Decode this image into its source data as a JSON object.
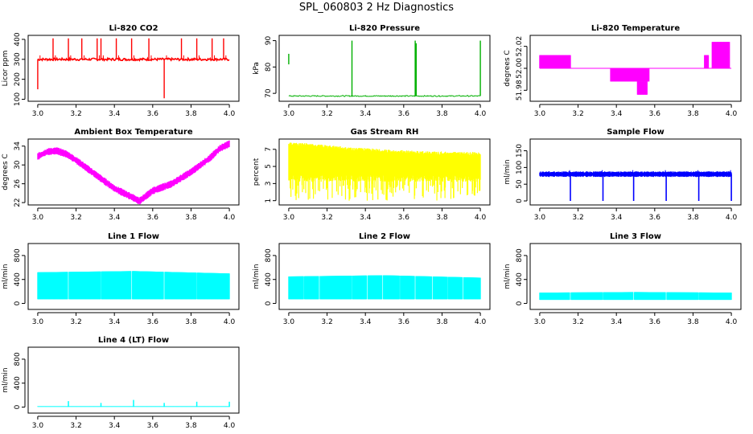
{
  "page_title": "SPL_060803  2 Hz Diagnostics",
  "chart_data": [
    {
      "id": "co2",
      "type": "line",
      "title": "Li-820 CO2",
      "ylabel": "Licor ppm",
      "color": "#ff0000",
      "xlim": [
        2.95,
        4.05
      ],
      "ylim": [
        90,
        420
      ],
      "xticks": [
        "3.0",
        "3.2",
        "3.4",
        "3.6",
        "3.8",
        "4.0"
      ],
      "yticks": [
        "100",
        "200",
        "300",
        "400"
      ],
      "baseline": 300,
      "noise": 6,
      "spikes": [
        {
          "x": 3.0,
          "v": 150
        },
        {
          "x": 3.08,
          "v": 405
        },
        {
          "x": 3.16,
          "v": 405
        },
        {
          "x": 3.23,
          "v": 405
        },
        {
          "x": 3.31,
          "v": 405
        },
        {
          "x": 3.33,
          "v": 405
        },
        {
          "x": 3.41,
          "v": 405
        },
        {
          "x": 3.49,
          "v": 405
        },
        {
          "x": 3.58,
          "v": 405
        },
        {
          "x": 3.66,
          "v": 105
        },
        {
          "x": 3.75,
          "v": 405
        },
        {
          "x": 3.83,
          "v": 405
        },
        {
          "x": 3.91,
          "v": 405
        },
        {
          "x": 3.97,
          "v": 405
        }
      ]
    },
    {
      "id": "pressure",
      "type": "line",
      "title": "Li-820 Pressure",
      "ylabel": "kPa",
      "color": "#00b000",
      "xlim": [
        2.95,
        4.05
      ],
      "ylim": [
        67,
        92
      ],
      "xticks": [
        "3.0",
        "3.2",
        "3.4",
        "3.6",
        "3.8",
        "4.0"
      ],
      "yticks": [
        "70",
        "80",
        "90"
      ],
      "baseline": 69,
      "noise": 0.2,
      "spikes": [
        {
          "x": 3.0,
          "v": 85,
          "from": 81
        },
        {
          "x": 3.33,
          "v": 90
        },
        {
          "x": 3.66,
          "v": 90
        },
        {
          "x": 3.665,
          "v": 89
        },
        {
          "x": 4.0,
          "v": 90
        }
      ]
    },
    {
      "id": "licor-temp",
      "type": "step",
      "title": "Li-820 Temperature",
      "ylabel": "degrees C",
      "color": "#ff00ff",
      "xlim": [
        2.95,
        4.05
      ],
      "ylim": [
        51.97,
        52.03
      ],
      "xticks": [
        "3.0",
        "3.2",
        "3.4",
        "3.6",
        "3.8",
        "4.0"
      ],
      "yticks": [
        "51.98",
        "52.00",
        "52.02"
      ],
      "level": 52.0,
      "blocks": [
        {
          "x0": 3.0,
          "x1": 3.16,
          "lo": 52.0,
          "hi": 52.012
        },
        {
          "x0": 3.37,
          "x1": 3.57,
          "lo": 51.988,
          "hi": 52.0
        },
        {
          "x0": 3.51,
          "x1": 3.56,
          "lo": 51.976,
          "hi": 51.988
        },
        {
          "x0": 3.86,
          "x1": 3.88,
          "lo": 52.0,
          "hi": 52.012
        },
        {
          "x0": 3.9,
          "x1": 3.99,
          "lo": 52.0,
          "hi": 52.024
        }
      ]
    },
    {
      "id": "ambient-temp",
      "type": "band",
      "title": "Ambient Box Temperature",
      "ylabel": "degrees C",
      "color": "#ff00ff",
      "xlim": [
        2.95,
        4.05
      ],
      "ylim": [
        21.5,
        35.5
      ],
      "xticks": [
        "3.0",
        "3.2",
        "3.4",
        "3.6",
        "3.8",
        "4.0"
      ],
      "yticks": [
        "22",
        "26",
        "30",
        "34"
      ],
      "profile": [
        [
          3.0,
          31.8
        ],
        [
          3.05,
          32.8
        ],
        [
          3.1,
          33.0
        ],
        [
          3.15,
          32.3
        ],
        [
          3.2,
          31.0
        ],
        [
          3.3,
          28.0
        ],
        [
          3.4,
          25.0
        ],
        [
          3.5,
          23.0
        ],
        [
          3.53,
          22.3
        ],
        [
          3.6,
          24.5
        ],
        [
          3.7,
          26.0
        ],
        [
          3.8,
          28.5
        ],
        [
          3.9,
          31.5
        ],
        [
          3.95,
          33.5
        ],
        [
          4.0,
          34.5
        ]
      ],
      "halfwidth": 0.6
    },
    {
      "id": "rh",
      "type": "band",
      "title": "Gas Stream RH",
      "ylabel": "percent",
      "color": "#ffff00",
      "xlim": [
        2.95,
        4.05
      ],
      "ylim": [
        0.5,
        8.2
      ],
      "xticks": [
        "3.0",
        "3.2",
        "3.4",
        "3.6",
        "3.8",
        "4.0"
      ],
      "yticks": [
        "1",
        "3",
        "5",
        "7"
      ],
      "top": [
        [
          3.0,
          7.8
        ],
        [
          3.1,
          7.7
        ],
        [
          3.3,
          7.3
        ],
        [
          3.5,
          7.0
        ],
        [
          3.7,
          6.8
        ],
        [
          3.9,
          6.7
        ],
        [
          4.0,
          6.7
        ]
      ],
      "bottom": 4.0,
      "min_bottom": 1.0
    },
    {
      "id": "sample-flow",
      "type": "band",
      "title": "Sample Flow",
      "ylabel": "ml/min",
      "color": "#0000ff",
      "xlim": [
        2.95,
        4.05
      ],
      "ylim": [
        -12,
        185
      ],
      "xticks": [
        "3.0",
        "3.2",
        "3.4",
        "3.6",
        "3.8",
        "4.0"
      ],
      "yticks": [
        "0",
        "50",
        "100",
        "150"
      ],
      "center": 80,
      "halfwidth": 7,
      "dips": [
        3.16,
        3.33,
        3.49,
        3.66,
        3.83,
        4.0
      ]
    },
    {
      "id": "line1",
      "type": "band",
      "title": "Line 1 Flow",
      "ylabel": "ml/min",
      "color": "#00ffff",
      "xlim": [
        2.95,
        4.05
      ],
      "ylim": [
        -100,
        1000
      ],
      "xticks": [
        "3.0",
        "3.2",
        "3.4",
        "3.6",
        "3.8",
        "4.0"
      ],
      "yticks": [
        "0",
        "400",
        "800"
      ],
      "lo": 70,
      "hi_profile": [
        [
          3.0,
          520
        ],
        [
          3.5,
          540
        ],
        [
          4.0,
          500
        ]
      ],
      "gaps": [
        3.16,
        3.33,
        3.49,
        3.66,
        3.83
      ]
    },
    {
      "id": "line2",
      "type": "band",
      "title": "Line 2 Flow",
      "ylabel": "ml/min",
      "color": "#00ffff",
      "xlim": [
        2.95,
        4.05
      ],
      "ylim": [
        -100,
        1000
      ],
      "xticks": [
        "3.0",
        "3.2",
        "3.4",
        "3.6",
        "3.8",
        "4.0"
      ],
      "yticks": [
        "0",
        "400",
        "800"
      ],
      "lo": 70,
      "hi_profile": [
        [
          3.0,
          450
        ],
        [
          3.5,
          470
        ],
        [
          4.0,
          430
        ]
      ],
      "gaps": [
        3.08,
        3.16,
        3.33,
        3.41,
        3.49,
        3.58,
        3.66,
        3.75,
        3.83,
        3.91
      ]
    },
    {
      "id": "line3",
      "type": "band",
      "title": "Line 3 Flow",
      "ylabel": "ml/min",
      "color": "#00ffff",
      "xlim": [
        2.95,
        4.05
      ],
      "ylim": [
        -100,
        1000
      ],
      "xticks": [
        "3.0",
        "3.2",
        "3.4",
        "3.6",
        "3.8",
        "4.0"
      ],
      "yticks": [
        "0",
        "400",
        "800"
      ],
      "lo": 60,
      "hi_profile": [
        [
          3.0,
          180
        ],
        [
          3.5,
          190
        ],
        [
          4.0,
          180
        ]
      ],
      "gaps": [
        3.16,
        3.33,
        3.49,
        3.66,
        3.83
      ]
    },
    {
      "id": "line4",
      "type": "band",
      "title": "Line 4 (LT) Flow",
      "ylabel": "ml/min",
      "color": "#00ffff",
      "xlim": [
        2.95,
        4.05
      ],
      "ylim": [
        -100,
        1000
      ],
      "xticks": [
        "3.0",
        "3.2",
        "3.4",
        "3.6",
        "3.8",
        "4.0"
      ],
      "yticks": [
        "0",
        "400",
        "800"
      ],
      "lo": 5,
      "hi_profile": [
        [
          3.0,
          15
        ],
        [
          4.0,
          15
        ]
      ],
      "spikes": [
        {
          "x": 3.16,
          "v": 100
        },
        {
          "x": 3.33,
          "v": 70
        },
        {
          "x": 3.5,
          "v": 120
        },
        {
          "x": 3.66,
          "v": 70
        },
        {
          "x": 3.83,
          "v": 90
        },
        {
          "x": 4.0,
          "v": 90
        }
      ]
    }
  ]
}
